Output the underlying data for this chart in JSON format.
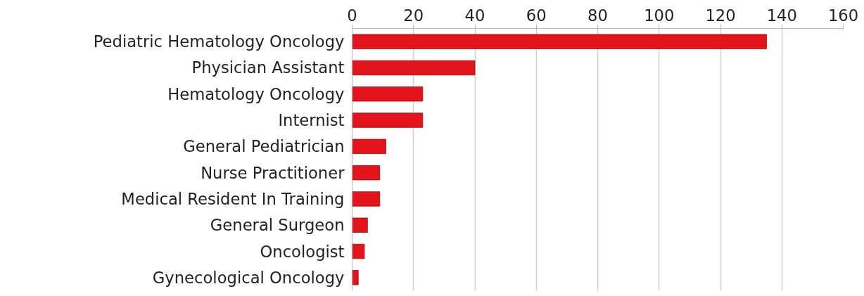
{
  "chart_data": {
    "type": "bar",
    "orientation": "horizontal",
    "categories": [
      "Pediatric Hematology Oncology",
      "Physician Assistant",
      "Hematology Oncology",
      "Internist",
      "General Pediatrician",
      "Nurse Practitioner",
      "Medical Resident In Training",
      "General Surgeon",
      "Oncologist",
      "Gynecological Oncology"
    ],
    "values": [
      135,
      40,
      23,
      23,
      11,
      9,
      9,
      5,
      4,
      2
    ],
    "color": "#e3141b",
    "xlim": [
      0,
      160
    ],
    "xticks": [
      0,
      20,
      40,
      60,
      80,
      100,
      120,
      140,
      160
    ],
    "grid": "x"
  }
}
